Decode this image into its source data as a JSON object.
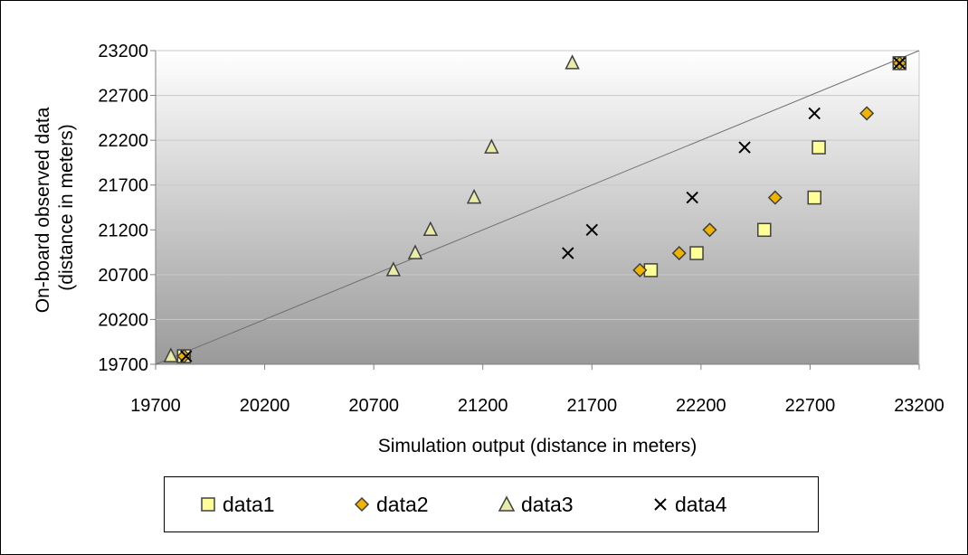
{
  "chart_data": {
    "type": "scatter",
    "xlabel": "Simulation output (distance in meters)",
    "ylabel_lines": [
      "On-board observed data",
      "(distance in meters)"
    ],
    "xlim": [
      19700,
      23200
    ],
    "ylim": [
      19700,
      23200
    ],
    "xticks": [
      19700,
      20200,
      20700,
      21200,
      21700,
      22200,
      22700,
      23200
    ],
    "yticks": [
      19700,
      20200,
      20700,
      21200,
      21700,
      22200,
      22700,
      23200
    ],
    "grid": "horizontal",
    "legend_position": "bottom",
    "reference_line": [
      [
        19700,
        19700
      ],
      [
        23200,
        23200
      ]
    ],
    "series": [
      {
        "name": "data1",
        "marker": "square",
        "color": "#ffff99",
        "x": [
          19830,
          21970,
          22180,
          22490,
          22720,
          22740,
          23110
        ],
        "y": [
          19790,
          20750,
          20940,
          21200,
          21560,
          22120,
          23060
        ]
      },
      {
        "name": "data2",
        "marker": "diamond",
        "color": "#f0b400",
        "x": [
          19830,
          21920,
          22100,
          22240,
          22540,
          22960,
          23110
        ],
        "y": [
          19790,
          20750,
          20940,
          21200,
          21560,
          22500,
          23060
        ]
      },
      {
        "name": "data3",
        "marker": "triangle",
        "color": "#e8eca8",
        "x": [
          19770,
          20790,
          20890,
          20960,
          21160,
          21240,
          21610
        ],
        "y": [
          19790,
          20750,
          20940,
          21200,
          21560,
          22120,
          23060
        ]
      },
      {
        "name": "data4",
        "marker": "x",
        "color": "#000000",
        "x": [
          19840,
          21590,
          21700,
          22160,
          22400,
          22720,
          23110
        ],
        "y": [
          19790,
          20940,
          21200,
          21560,
          22120,
          22500,
          23060
        ]
      }
    ]
  }
}
